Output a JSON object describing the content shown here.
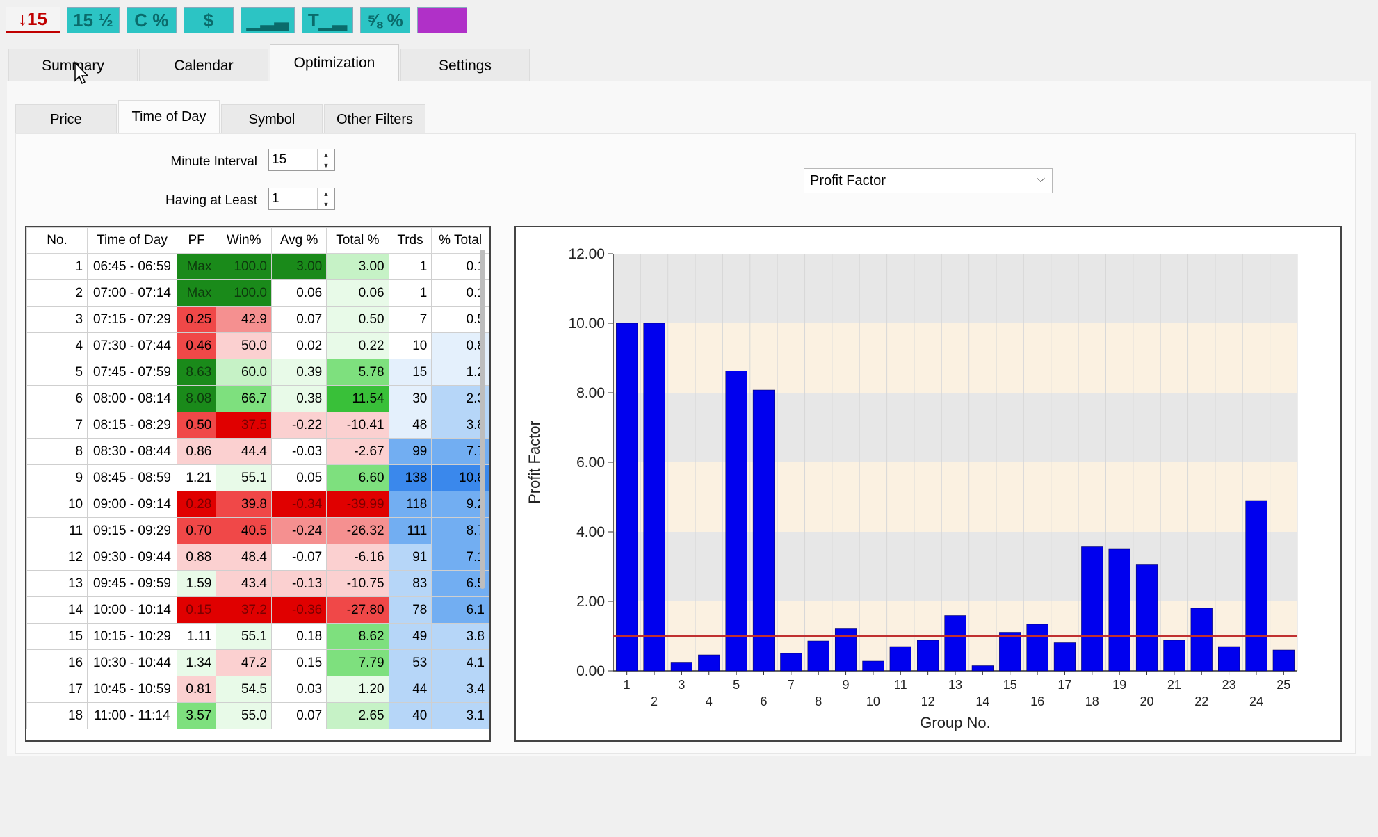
{
  "toolbar": {
    "buttons": [
      {
        "name": "trades-15-button",
        "label": "↓15",
        "style": "red"
      },
      {
        "name": "time-scale-button",
        "label": "15 ½",
        "style": "teal"
      },
      {
        "name": "c-percent-button",
        "label": "C %",
        "style": "teal"
      },
      {
        "name": "dollar-button",
        "label": "$",
        "style": "teal"
      },
      {
        "name": "bars-button",
        "label": "▁▂▃",
        "style": "teal"
      },
      {
        "name": "t-bars-button",
        "label": "T▁▂",
        "style": "teal"
      },
      {
        "name": "fraction-percent-button",
        "label": "⅝ %",
        "style": "teal"
      },
      {
        "name": "purple-button",
        "label": "",
        "style": "purple"
      }
    ]
  },
  "main_tabs": [
    {
      "label": "Summary",
      "active": false
    },
    {
      "label": "Calendar",
      "active": false
    },
    {
      "label": "Optimization",
      "active": true
    },
    {
      "label": "Settings",
      "active": false
    }
  ],
  "sub_tabs": [
    {
      "label": "Price",
      "active": false
    },
    {
      "label": "Time of Day",
      "active": true
    },
    {
      "label": "Symbol",
      "active": false
    },
    {
      "label": "Other Filters",
      "active": false
    }
  ],
  "filters": {
    "minute_interval_label": "Minute Interval",
    "minute_interval_value": "15",
    "having_at_least_label": "Having at Least",
    "having_at_least_value": "1"
  },
  "metric_dropdown": {
    "selected": "Profit Factor"
  },
  "colors": {
    "green_dark": "#1a8a1a",
    "green": "#39c039",
    "green_mid": "#7ee07e",
    "green_light": "#c6f2c6",
    "green_pale": "#e8fae8",
    "red_dark": "#e00000",
    "red": "#f04848",
    "red_mid": "#f59090",
    "red_light": "#fbd0d0",
    "blue_dark": "#3a88ec",
    "blue": "#72aef2",
    "blue_light": "#b6d6f8",
    "blue_pale": "#e4f0fc",
    "bar": "#0000ee",
    "ref_line": "#c03030",
    "band_a": "#fbf1e1",
    "band_b": "#e7e7e7"
  },
  "table": {
    "columns": [
      "No.",
      "Time of Day",
      "PF",
      "Win%",
      "Avg %",
      "Total %",
      "Trds",
      "% Total"
    ],
    "rows": [
      {
        "no": "1",
        "tod": "06:45 - 06:59",
        "pf": "Max",
        "win": "100.0",
        "avg": "3.00",
        "total": "3.00",
        "trds": "1",
        "pct": "0.1",
        "c": [
          "green_dark",
          "green_dark",
          "green_dark",
          "green_light",
          "white",
          "white"
        ]
      },
      {
        "no": "2",
        "tod": "07:00 - 07:14",
        "pf": "Max",
        "win": "100.0",
        "avg": "0.06",
        "total": "0.06",
        "trds": "1",
        "pct": "0.1",
        "c": [
          "green_dark",
          "green_dark",
          "white",
          "green_pale",
          "white",
          "white"
        ]
      },
      {
        "no": "3",
        "tod": "07:15 - 07:29",
        "pf": "0.25",
        "win": "42.9",
        "avg": "0.07",
        "total": "0.50",
        "trds": "7",
        "pct": "0.5",
        "c": [
          "red",
          "red_mid",
          "white",
          "green_pale",
          "white",
          "white"
        ]
      },
      {
        "no": "4",
        "tod": "07:30 - 07:44",
        "pf": "0.46",
        "win": "50.0",
        "avg": "0.02",
        "total": "0.22",
        "trds": "10",
        "pct": "0.8",
        "c": [
          "red",
          "red_light",
          "white",
          "green_pale",
          "white",
          "blue_pale"
        ]
      },
      {
        "no": "5",
        "tod": "07:45 - 07:59",
        "pf": "8.63",
        "win": "60.0",
        "avg": "0.39",
        "total": "5.78",
        "trds": "15",
        "pct": "1.2",
        "c": [
          "green_dark",
          "green_light",
          "green_pale",
          "green_mid",
          "blue_pale",
          "blue_pale"
        ]
      },
      {
        "no": "6",
        "tod": "08:00 - 08:14",
        "pf": "8.08",
        "win": "66.7",
        "avg": "0.38",
        "total": "11.54",
        "trds": "30",
        "pct": "2.3",
        "c": [
          "green_dark",
          "green_mid",
          "green_pale",
          "green",
          "blue_pale",
          "blue_light"
        ]
      },
      {
        "no": "7",
        "tod": "08:15 - 08:29",
        "pf": "0.50",
        "win": "37.5",
        "avg": "-0.22",
        "total": "-10.41",
        "trds": "48",
        "pct": "3.8",
        "c": [
          "red",
          "red_dark",
          "red_light",
          "red_light",
          "blue_pale",
          "blue_light"
        ]
      },
      {
        "no": "8",
        "tod": "08:30 - 08:44",
        "pf": "0.86",
        "win": "44.4",
        "avg": "-0.03",
        "total": "-2.67",
        "trds": "99",
        "pct": "7.7",
        "c": [
          "red_light",
          "red_light",
          "white",
          "red_light",
          "blue",
          "blue"
        ]
      },
      {
        "no": "9",
        "tod": "08:45 - 08:59",
        "pf": "1.21",
        "win": "55.1",
        "avg": "0.05",
        "total": "6.60",
        "trds": "138",
        "pct": "10.8",
        "c": [
          "white",
          "green_pale",
          "white",
          "green_mid",
          "blue_dark",
          "blue_dark"
        ]
      },
      {
        "no": "10",
        "tod": "09:00 - 09:14",
        "pf": "0.28",
        "win": "39.8",
        "avg": "-0.34",
        "total": "-39.99",
        "trds": "118",
        "pct": "9.2",
        "c": [
          "red_dark",
          "red",
          "red_dark",
          "red_dark",
          "blue",
          "blue"
        ]
      },
      {
        "no": "11",
        "tod": "09:15 - 09:29",
        "pf": "0.70",
        "win": "40.5",
        "avg": "-0.24",
        "total": "-26.32",
        "trds": "111",
        "pct": "8.7",
        "c": [
          "red",
          "red",
          "red_mid",
          "red_mid",
          "blue",
          "blue"
        ]
      },
      {
        "no": "12",
        "tod": "09:30 - 09:44",
        "pf": "0.88",
        "win": "48.4",
        "avg": "-0.07",
        "total": "-6.16",
        "trds": "91",
        "pct": "7.1",
        "c": [
          "red_light",
          "red_light",
          "white",
          "red_light",
          "blue_light",
          "blue"
        ]
      },
      {
        "no": "13",
        "tod": "09:45 - 09:59",
        "pf": "1.59",
        "win": "43.4",
        "avg": "-0.13",
        "total": "-10.75",
        "trds": "83",
        "pct": "6.5",
        "c": [
          "green_pale",
          "red_light",
          "red_light",
          "red_light",
          "blue_light",
          "blue"
        ]
      },
      {
        "no": "14",
        "tod": "10:00 - 10:14",
        "pf": "0.15",
        "win": "37.2",
        "avg": "-0.36",
        "total": "-27.80",
        "trds": "78",
        "pct": "6.1",
        "c": [
          "red_dark",
          "red_dark",
          "red_dark",
          "red",
          "blue_light",
          "blue"
        ]
      },
      {
        "no": "15",
        "tod": "10:15 - 10:29",
        "pf": "1.11",
        "win": "55.1",
        "avg": "0.18",
        "total": "8.62",
        "trds": "49",
        "pct": "3.8",
        "c": [
          "white",
          "green_pale",
          "white",
          "green_mid",
          "blue_light",
          "blue_light"
        ]
      },
      {
        "no": "16",
        "tod": "10:30 - 10:44",
        "pf": "1.34",
        "win": "47.2",
        "avg": "0.15",
        "total": "7.79",
        "trds": "53",
        "pct": "4.1",
        "c": [
          "green_pale",
          "red_light",
          "white",
          "green_mid",
          "blue_light",
          "blue_light"
        ]
      },
      {
        "no": "17",
        "tod": "10:45 - 10:59",
        "pf": "0.81",
        "win": "54.5",
        "avg": "0.03",
        "total": "1.20",
        "trds": "44",
        "pct": "3.4",
        "c": [
          "red_light",
          "green_pale",
          "white",
          "green_pale",
          "blue_light",
          "blue_light"
        ]
      },
      {
        "no": "18",
        "tod": "11:00 - 11:14",
        "pf": "3.57",
        "win": "55.0",
        "avg": "0.07",
        "total": "2.65",
        "trds": "40",
        "pct": "3.1",
        "c": [
          "green_mid",
          "green_pale",
          "white",
          "green_light",
          "blue_light",
          "blue_light"
        ]
      }
    ]
  },
  "chart_data": {
    "type": "bar",
    "ylabel": "Profit Factor",
    "xlabel": "Group No.",
    "ylim": [
      0,
      12
    ],
    "yticks": [
      "0.00",
      "2.00",
      "4.00",
      "6.00",
      "8.00",
      "10.00",
      "12.00"
    ],
    "reference_line": 1.0,
    "categories": [
      "1",
      "2",
      "3",
      "4",
      "5",
      "6",
      "7",
      "8",
      "9",
      "10",
      "11",
      "12",
      "13",
      "14",
      "15",
      "16",
      "17",
      "18",
      "19",
      "20",
      "21",
      "22",
      "23",
      "24",
      "25"
    ],
    "values": [
      10.0,
      10.0,
      0.25,
      0.46,
      8.63,
      8.08,
      0.5,
      0.86,
      1.21,
      0.28,
      0.7,
      0.88,
      1.59,
      0.15,
      1.11,
      1.34,
      0.81,
      3.57,
      3.5,
      3.05,
      0.88,
      1.8,
      0.7,
      4.9,
      0.6
    ]
  }
}
